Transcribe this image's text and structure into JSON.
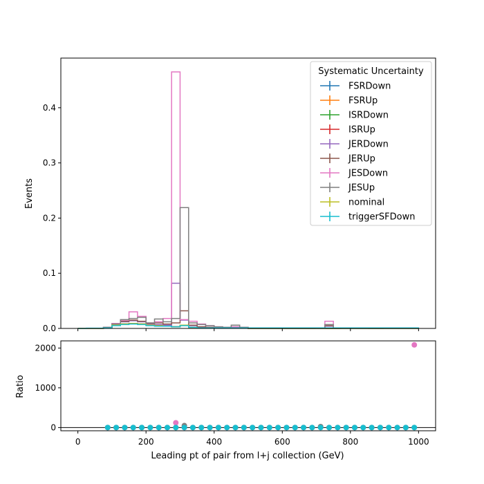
{
  "chart_data": {
    "type": "histogram-ratio",
    "xlabel": "Leading pt of pair from l+j collection (GeV)",
    "ylabel_top": "Events",
    "ylabel_bottom": "Ratio",
    "xlim": [
      -50,
      1050
    ],
    "ylim_top": [
      0,
      0.49
    ],
    "ylim_bottom": [
      -80,
      2180
    ],
    "xticks": [
      0,
      200,
      400,
      600,
      800,
      1000
    ],
    "yticks_top": [
      0.0,
      0.1,
      0.2,
      0.3,
      0.4
    ],
    "yticks_bottom": [
      0,
      1000,
      2000
    ],
    "ytick_labels_top": [
      "0.0",
      "0.1",
      "0.2",
      "0.3",
      "0.4"
    ],
    "legend": {
      "title": "Systematic Uncertainty",
      "placement": "top-right"
    },
    "bin_edges": [
      0,
      25,
      50,
      75,
      100,
      125,
      150,
      175,
      200,
      225,
      250,
      275,
      300,
      325,
      350,
      375,
      400,
      425,
      450,
      475,
      500,
      525,
      550,
      575,
      600,
      625,
      650,
      675,
      700,
      725,
      750,
      775,
      800,
      825,
      850,
      875,
      900,
      925,
      950,
      975,
      1000
    ],
    "series": [
      {
        "name": "FSRDown",
        "color": "#1f77b4",
        "values": [
          0,
          0,
          0,
          0.001,
          0.006,
          0.008,
          0.009,
          0.008,
          0.006,
          0.005,
          0.004,
          0.003,
          0.006,
          0.002,
          0.001,
          0.001,
          0.001,
          0.001,
          0.001,
          0.001,
          0,
          0,
          0,
          0,
          0,
          0,
          0,
          0,
          0,
          0,
          0,
          0,
          0,
          0,
          0,
          0,
          0,
          0,
          0,
          0
        ]
      },
      {
        "name": "FSRUp",
        "color": "#ff7f0e",
        "values": [
          0,
          0,
          0,
          0.001,
          0.006,
          0.008,
          0.009,
          0.008,
          0.006,
          0.005,
          0.004,
          0.003,
          0.006,
          0.002,
          0.001,
          0.001,
          0.001,
          0.001,
          0.001,
          0.001,
          0,
          0,
          0,
          0,
          0,
          0,
          0,
          0,
          0,
          0,
          0,
          0,
          0,
          0,
          0,
          0,
          0,
          0,
          0,
          0
        ]
      },
      {
        "name": "ISRDown",
        "color": "#2ca02c",
        "values": [
          0,
          0,
          0,
          0.001,
          0.006,
          0.008,
          0.009,
          0.008,
          0.006,
          0.005,
          0.004,
          0.003,
          0.006,
          0.002,
          0.001,
          0.001,
          0.001,
          0.001,
          0.001,
          0.001,
          0,
          0,
          0,
          0,
          0,
          0,
          0,
          0,
          0,
          0,
          0,
          0,
          0,
          0,
          0,
          0,
          0,
          0,
          0,
          0
        ]
      },
      {
        "name": "ISRUp",
        "color": "#d62728",
        "values": [
          0,
          0,
          0,
          0.001,
          0.006,
          0.008,
          0.009,
          0.008,
          0.006,
          0.005,
          0.004,
          0.003,
          0.006,
          0.002,
          0.001,
          0.001,
          0.001,
          0.001,
          0.001,
          0.001,
          0,
          0,
          0,
          0,
          0,
          0,
          0,
          0,
          0,
          0,
          0,
          0,
          0,
          0,
          0,
          0,
          0,
          0,
          0,
          0
        ]
      },
      {
        "name": "JERDown",
        "color": "#9467bd",
        "values": [
          0,
          0,
          0,
          0.002,
          0.008,
          0.012,
          0.014,
          0.012,
          0.008,
          0.007,
          0.006,
          0.082,
          0.015,
          0.005,
          0.003,
          0.002,
          0.001,
          0.001,
          0.002,
          0.001,
          0,
          0,
          0,
          0,
          0,
          0,
          0,
          0,
          0,
          0.004,
          0,
          0,
          0,
          0,
          0,
          0,
          0,
          0,
          0,
          0
        ]
      },
      {
        "name": "JERUp",
        "color": "#8c564b",
        "values": [
          0,
          0,
          0,
          0.002,
          0.009,
          0.013,
          0.015,
          0.013,
          0.009,
          0.01,
          0.008,
          0.01,
          0.032,
          0.006,
          0.003,
          0.002,
          0.001,
          0.001,
          0.003,
          0.001,
          0,
          0,
          0,
          0,
          0,
          0,
          0,
          0,
          0,
          0.005,
          0,
          0,
          0,
          0,
          0,
          0,
          0,
          0,
          0,
          0
        ]
      },
      {
        "name": "JESDown",
        "color": "#e377c2",
        "values": [
          0,
          0,
          0,
          0.002,
          0.009,
          0.015,
          0.03,
          0.022,
          0.01,
          0.012,
          0.018,
          0.465,
          0.016,
          0.013,
          0.008,
          0.005,
          0.003,
          0.002,
          0.003,
          0.002,
          0.001,
          0.001,
          0.001,
          0.001,
          0.001,
          0.001,
          0.001,
          0.001,
          0,
          0.013,
          0.001,
          0,
          0,
          0,
          0.001,
          0.001,
          0,
          0,
          0,
          0
        ]
      },
      {
        "name": "JESUp",
        "color": "#7f7f7f",
        "values": [
          0,
          0,
          0,
          0.002,
          0.008,
          0.016,
          0.018,
          0.02,
          0.01,
          0.017,
          0.012,
          0.018,
          0.219,
          0.01,
          0.007,
          0.005,
          0.003,
          0.002,
          0.006,
          0.002,
          0.001,
          0.001,
          0.001,
          0.001,
          0.001,
          0.001,
          0.001,
          0.001,
          0,
          0.007,
          0.001,
          0,
          0,
          0,
          0.001,
          0.001,
          0,
          0,
          0,
          0
        ]
      },
      {
        "name": "nominal",
        "color": "#bcbd22",
        "values": [
          0,
          0,
          0,
          0.001,
          0.006,
          0.008,
          0.009,
          0.008,
          0.006,
          0.005,
          0.004,
          0.003,
          0.006,
          0.002,
          0.001,
          0.001,
          0.001,
          0.001,
          0.001,
          0.001,
          0,
          0,
          0,
          0,
          0,
          0,
          0,
          0,
          0,
          0,
          0,
          0,
          0,
          0,
          0,
          0,
          0,
          0,
          0,
          0
        ]
      },
      {
        "name": "triggerSFDown",
        "color": "#17becf",
        "values": [
          0,
          0.0005,
          0.0005,
          0.001,
          0.005,
          0.007,
          0.008,
          0.007,
          0.005,
          0.004,
          0.004,
          0.003,
          0.005,
          0.002,
          0.001,
          0.001,
          0.001,
          0.001,
          0.001,
          0.001,
          0.001,
          0.001,
          0.001,
          0.001,
          0.001,
          0.001,
          0.001,
          0.001,
          0.001,
          0.001,
          0.001,
          0.001,
          0.001,
          0.001,
          0.001,
          0.001,
          0.001,
          0.001,
          0.001,
          0.001
        ]
      }
    ],
    "ratio": {
      "x": [
        87.5,
        112.5,
        137.5,
        162.5,
        187.5,
        212.5,
        237.5,
        262.5,
        287.5,
        312.5,
        337.5,
        362.5,
        387.5,
        412.5,
        437.5,
        462.5,
        487.5,
        512.5,
        537.5,
        562.5,
        587.5,
        612.5,
        637.5,
        662.5,
        687.5,
        712.5,
        737.5,
        762.5,
        787.5,
        812.5,
        837.5,
        862.5,
        887.5,
        912.5,
        937.5,
        962.5,
        987.5
      ],
      "series": [
        {
          "name": "JESDown",
          "color": "#e377c2",
          "values": [
            1,
            1,
            1,
            1,
            1,
            1,
            1,
            1,
            120,
            1,
            1,
            1,
            1,
            1,
            1,
            1,
            1,
            1,
            1,
            1,
            1,
            1,
            1,
            1,
            1,
            10,
            1,
            1,
            1,
            1,
            1,
            1,
            1,
            1,
            1,
            1,
            2080
          ]
        },
        {
          "name": "JESUp",
          "color": "#7f7f7f",
          "values": [
            1,
            1,
            1,
            1,
            1,
            1,
            1,
            1,
            1,
            50,
            1,
            1,
            1,
            1,
            1,
            1,
            1,
            1,
            1,
            1,
            1,
            1,
            1,
            1,
            1,
            25,
            1,
            1,
            1,
            1,
            1,
            1,
            1,
            1,
            1,
            1,
            1
          ]
        },
        {
          "name": "triggerSFDown",
          "color": "#17becf",
          "values": [
            1,
            1,
            1,
            1,
            1,
            1,
            1,
            1,
            1,
            1,
            1,
            1,
            1,
            1,
            1,
            1,
            1,
            1,
            1,
            1,
            1,
            1,
            1,
            1,
            1,
            1,
            1,
            1,
            1,
            1,
            1,
            1,
            1,
            1,
            1,
            1,
            1
          ]
        }
      ]
    }
  }
}
